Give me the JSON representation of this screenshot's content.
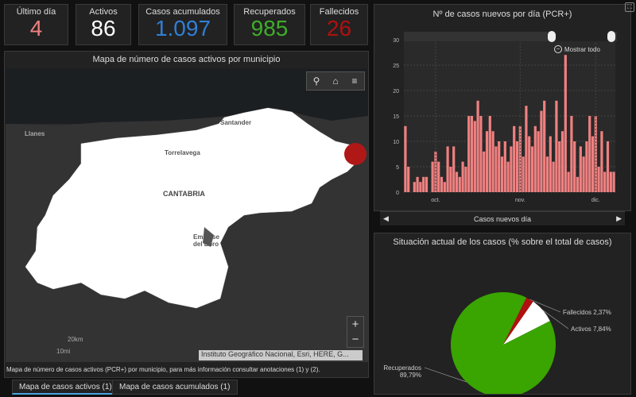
{
  "stats": [
    {
      "label": "Último día",
      "value": "4",
      "color": "#f08080"
    },
    {
      "label": "Activos",
      "value": "86",
      "color": "#ffffff"
    },
    {
      "label": "Casos acumulados",
      "value": "1.097",
      "color": "#2f7fd8"
    },
    {
      "label": "Recuperados",
      "value": "985",
      "color": "#3fae2a"
    },
    {
      "label": "Fallecidos",
      "value": "26",
      "color": "#b01010"
    }
  ],
  "map": {
    "title": "Mapa de número de casos activos por municipio",
    "labels": {
      "region": "CANTABRIA",
      "llanes": "Llanes",
      "torrelavega": "Torrelavega",
      "santander": "Santander",
      "embalse": "Embalse del Ebro"
    },
    "scale": {
      "km": "20km",
      "mi": "10mi"
    },
    "attribution": "Instituto Geográfico Nacional, Esri, HERE, G...",
    "description": "Mapa de número de casos activos (PCR+) por municipio, para más información consultar anotaciones (1) y (2).",
    "zoom_in": "+",
    "zoom_out": "−"
  },
  "tabs": [
    {
      "label": "Mapa de casos activos (1)",
      "active": true
    },
    {
      "label": "Mapa de casos acumulados (1)",
      "active": false
    }
  ],
  "bar_panel": {
    "title": "Nº de casos nuevos por día (PCR+)",
    "show_all": "Mostrar todo",
    "footer": "Casos nuevos día"
  },
  "pie_panel": {
    "title": "Situación actual de los casos (% sobre el total de casos)"
  },
  "chart_data": [
    {
      "type": "bar",
      "title": "Nº de casos nuevos por día (PCR+)",
      "xlabel": "Casos nuevos día",
      "ylabel": "",
      "ylim": [
        0,
        30
      ],
      "yticks": [
        0,
        5,
        10,
        15,
        20,
        25,
        30
      ],
      "xtick_labels": [
        "oct.",
        "nov.",
        "dic."
      ],
      "grid": true,
      "color": "#f08080",
      "values": [
        13,
        5,
        0,
        2,
        3,
        2,
        3,
        3,
        0,
        6,
        8,
        6,
        3,
        2,
        9,
        5,
        9,
        4,
        3,
        6,
        5,
        15,
        15,
        14,
        18,
        15,
        8,
        12,
        15,
        12,
        9,
        10,
        7,
        10,
        6,
        9,
        13,
        10,
        13,
        7,
        17,
        11,
        9,
        13,
        12,
        16,
        18,
        7,
        11,
        6,
        18,
        10,
        12,
        27,
        4,
        15,
        10,
        3,
        9,
        7,
        10,
        15,
        11,
        15,
        5,
        12,
        4,
        10,
        4,
        4
      ],
      "xtick_positions": [
        10,
        38,
        63
      ]
    },
    {
      "type": "pie",
      "title": "Situación actual de los casos (% sobre el total de casos)",
      "slices": [
        {
          "label": "Recuperados\n89,79%",
          "name": "Recuperados",
          "value": 89.79,
          "color": "#3aa400"
        },
        {
          "label": "Fallecidos 2,37%",
          "name": "Fallecidos",
          "value": 2.37,
          "color": "#b01010"
        },
        {
          "label": "Activos 7,84%",
          "name": "Activos",
          "value": 7.84,
          "color": "#ffffff"
        }
      ]
    }
  ]
}
